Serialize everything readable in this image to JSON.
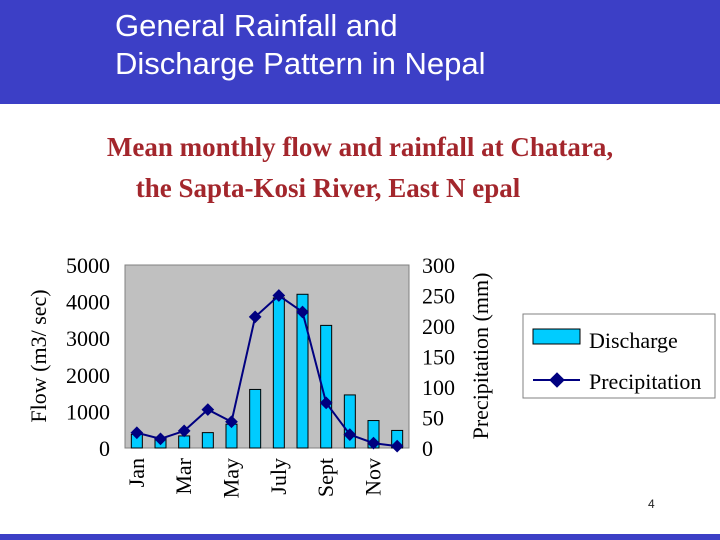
{
  "slide": {
    "title_line1": "General Rainfall and",
    "title_line2": "Discharge Pattern in Nepal",
    "page_number": "4"
  },
  "colors": {
    "header_background": "#3c3fc6",
    "header_text": "#ffffff",
    "chart_title": "#a3262c",
    "plot_background": "#c0c0c0",
    "discharge_bar": "#00ccff",
    "precipitation_line": "#000080"
  },
  "chart_data": {
    "type": "bar",
    "title_line1": "Mean monthly flow and rainfall at Chatara,",
    "title_line2": "the Sapta-Kosi  River, East N epal",
    "categories": [
      "Jan",
      "Feb",
      "Mar",
      "Apr",
      "May",
      "June",
      "July",
      "Aug",
      "Sept",
      "Oct",
      "Nov",
      "Dec"
    ],
    "x_tick_labels": [
      "Jan",
      "",
      "Mar",
      "",
      "May",
      "",
      "July",
      "",
      "Sept",
      "",
      "Nov",
      ""
    ],
    "ylabel_left": "Flow (m3/ sec)",
    "ylabel_right": "Precipitation (mm)",
    "ylim_left": [
      0,
      5000
    ],
    "ylim_right": [
      0,
      300
    ],
    "yticks_left": [
      0,
      1000,
      2000,
      3000,
      4000,
      5000
    ],
    "yticks_right": [
      0,
      50,
      100,
      150,
      200,
      250,
      300
    ],
    "grid": false,
    "legend_position": "right",
    "series": [
      {
        "name": "Discharge",
        "type": "bar",
        "axis": "left",
        "values": [
          370,
          300,
          330,
          420,
          650,
          1600,
          4100,
          4200,
          3350,
          1450,
          750,
          480
        ]
      },
      {
        "name": "Precipitation",
        "type": "line",
        "axis": "right",
        "values": [
          25,
          15,
          28,
          63,
          43,
          215,
          250,
          223,
          74,
          22,
          8,
          3
        ]
      }
    ]
  }
}
